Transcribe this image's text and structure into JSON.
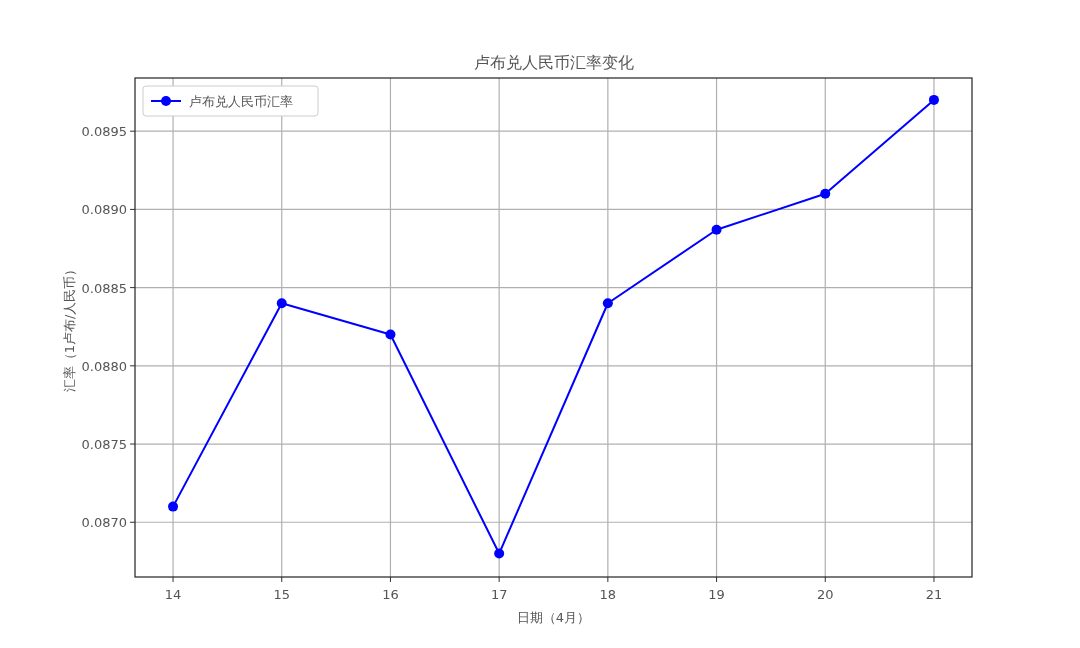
{
  "chart_data": {
    "type": "line",
    "title": "卢布兑人民币汇率变化",
    "xlabel": "日期（4月）",
    "ylabel": "汇率（1卢布/人民币）",
    "x": [
      14,
      15,
      16,
      17,
      18,
      19,
      20,
      21
    ],
    "series": [
      {
        "name": "卢布兑人民币汇率",
        "color": "#0000ff",
        "values": [
          0.0871,
          0.0884,
          0.0882,
          0.0868,
          0.0884,
          0.08887,
          0.0891,
          0.0897
        ]
      }
    ],
    "xlim": [
      13.65,
      21.35
    ],
    "ylim": [
      0.08665,
      0.08984
    ],
    "xticks": [
      14,
      15,
      16,
      17,
      18,
      19,
      20,
      21
    ],
    "yticks": [
      {
        "value": 0.087,
        "label": "0.0870"
      },
      {
        "value": 0.0875,
        "label": "0.0875"
      },
      {
        "value": 0.088,
        "label": "0.0880"
      },
      {
        "value": 0.0885,
        "label": "0.0885"
      },
      {
        "value": 0.089,
        "label": "0.0890"
      },
      {
        "value": 0.0895,
        "label": "0.0895"
      }
    ],
    "grid": true,
    "legend": "top left",
    "marker": "circle",
    "line_style": "solid"
  }
}
